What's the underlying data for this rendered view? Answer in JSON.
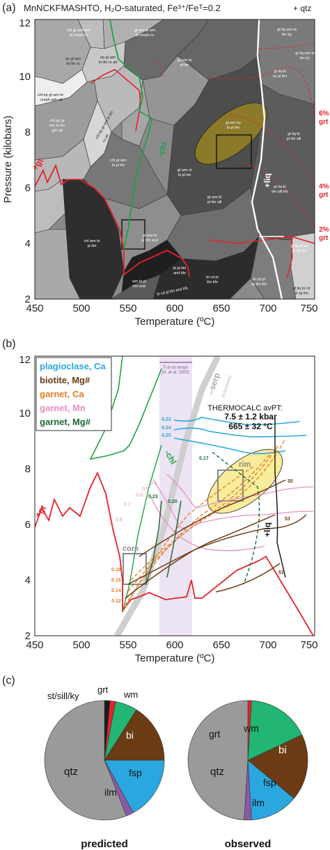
{
  "colors": {
    "red": "#e8212b",
    "green": "#22a04a",
    "blue": "#2aa7de",
    "brown": "#6b3b13",
    "orange": "#e67d22",
    "pink": "#e88fc0",
    "darkgreen": "#1b6b34",
    "olive": "#8a7a2a",
    "grey": "#9a9a9a",
    "purple": "#8a5aa6"
  },
  "panel_a": {
    "letter": "(a)",
    "title": "MnNCKFMASHTO, H₂O-saturated, Fe³⁺/Feᵀ=0.2",
    "qtz_note": "+ qtz",
    "xlabel": "Temperature (ºC)",
    "ylabel": "Pressure (kilobars)",
    "xticks": [
      "450",
      "500",
      "550",
      "600",
      "650",
      "700",
      "750"
    ],
    "yticks": [
      "2",
      "4",
      "6",
      "8",
      "10",
      "12"
    ],
    "right_labels": [
      "6%",
      "grt",
      "4%",
      "grt",
      "2%",
      "grt"
    ],
    "line_labels": {
      "gt": "+gt",
      "chl": "-chl",
      "liq": "+liq"
    },
    "field_labels": [
      "chl gt wm wm",
      "bi omph ru",
      "gt wm bi wm",
      "bi omph ru",
      "gt liq wm bi",
      "ilm ky",
      "gt liq wm bi",
      "ilm ky",
      "ep gt wm",
      "bi ilm ru",
      "ep gt wm",
      "bi ilm ru ab",
      "gt wm bi",
      "pl ilm",
      "gt liq bi",
      "ky pl ilm",
      "chl ep gt wm bi",
      "omph sph ab",
      "chl ep gt",
      "wm bi ilm",
      "sph ab",
      "chl ep gt wm bi ilm",
      "ru ab",
      "gt wm ky",
      "bi pl ilm",
      "gt liq bi",
      "pl ilm sill",
      "chl gt wm",
      "bi pl ilm",
      "gt wm st",
      "bi pl ilm",
      "gt wm bi",
      "pl ilm sill",
      "gt liq bi",
      "ilm sill kfs",
      "chl wm bi",
      "pl ilm",
      "gt wm bi",
      "pl ilm and",
      "gt liq bi cd",
      "pl sp ilm",
      "wm bi pl",
      "ilm and",
      "bi pl ilm",
      "and kfs",
      "bi cd pl",
      "ilm kfs",
      "bi cd pl ilm and kfs",
      "bi cd pl",
      "sp ilm kfs",
      "gt liq bi cd",
      "pl sp ilm"
    ]
  },
  "panel_b": {
    "letter": "(b)",
    "xlabel": "Temperature (ºC)",
    "xticks": [
      "450",
      "500",
      "550",
      "600",
      "650",
      "700",
      "750"
    ],
    "yticks": [
      "2",
      "4",
      "6",
      "8",
      "10",
      "12"
    ],
    "legend": [
      "plagioclase, Ca",
      "biotite, Mg#",
      "garnet, Ca",
      "garnet, Mn",
      "garnet, Mg#"
    ],
    "avpt_title": "THERMOCALC avPT:",
    "avpt_p": "7.5 ± 1.2 kbar",
    "avpt_t": "665 ± 32 °C",
    "tiinbt": "Ti-in-bt temps",
    "tiinbt_ref": "(H. et al. 2005)",
    "serp": "–serp",
    "serp_ref": "(H-isochron)",
    "core": "core",
    "rim": "rim",
    "chl": "-chl",
    "gt": "+gt",
    "liq": "+liq",
    "contour_labels": {
      "plag": [
        "0.23",
        "0.24",
        "0.25"
      ],
      "gtmg": [
        "0.17",
        "0.23",
        "0.20"
      ],
      "gtmn": [
        "0.4",
        "0.5",
        "0.6",
        "0.7",
        "0.8"
      ],
      "gtca": [
        "0.18",
        "0.16",
        "0.14",
        "0.12"
      ],
      "bimg": [
        "55",
        "53",
        "51"
      ]
    }
  },
  "panel_c": {
    "letter": "(c)",
    "predicted_label": "predicted",
    "observed_label": "observed",
    "pie_labels": {
      "st": "st/sill/ky",
      "grt": "grt",
      "wm": "wm",
      "bi": "bi",
      "fsp": "fsp",
      "ilm": "ilm",
      "qtz": "qtz"
    }
  },
  "chart_data": [
    {
      "type": "area",
      "subtitle": "MnNCKFMASHTO, H₂O-saturated, Fe³⁺/Feᵀ=0.2",
      "xlabel": "Temperature (ºC)",
      "ylabel": "Pressure (kilobars)",
      "xlim": [
        450,
        750
      ],
      "ylim": [
        2,
        12
      ],
      "boxes": [
        {
          "name": "core",
          "t": [
            545,
            570
          ],
          "p": [
            3.6,
            4.9
          ]
        },
        {
          "name": "rim",
          "t": [
            650,
            680
          ],
          "p": [
            7.0,
            7.9
          ]
        }
      ],
      "ellipse": {
        "t_center": 665,
        "p_center": 7.5,
        "t_err": 32,
        "p_err": 1.2
      }
    },
    {
      "type": "line",
      "xlabel": "Temperature (ºC)",
      "xlim": [
        450,
        750
      ],
      "ylim": [
        2,
        12
      ],
      "series": [
        {
          "name": "plagioclase, Ca",
          "contours": [
            "0.23",
            "0.24",
            "0.25"
          ]
        },
        {
          "name": "biotite, Mg#",
          "contours": [
            "55",
            "53",
            "51"
          ]
        },
        {
          "name": "garnet, Ca",
          "contours": [
            "0.18",
            "0.16",
            "0.14",
            "0.12"
          ]
        },
        {
          "name": "garnet, Mn",
          "contours": [
            "0.4",
            "0.5",
            "0.6",
            "0.7",
            "0.8"
          ]
        },
        {
          "name": "garnet, Mg#",
          "contours": [
            "0.17",
            "0.23",
            "0.20"
          ]
        }
      ],
      "avpt": {
        "p": 7.5,
        "p_err": 1.2,
        "t": 665,
        "t_err": 32
      }
    },
    {
      "type": "pie",
      "title": "predicted",
      "categories": [
        "st/sill/ky",
        "grt",
        "wm",
        "bi",
        "fsp",
        "ilm",
        "qtz"
      ],
      "values": [
        1.5,
        1.5,
        6,
        16,
        17,
        2,
        56
      ]
    },
    {
      "type": "pie",
      "title": "observed",
      "categories": [
        "grt",
        "wm",
        "bi",
        "fsp",
        "ilm",
        "qtz"
      ],
      "values": [
        1,
        17,
        18,
        13,
        2,
        49
      ]
    }
  ]
}
